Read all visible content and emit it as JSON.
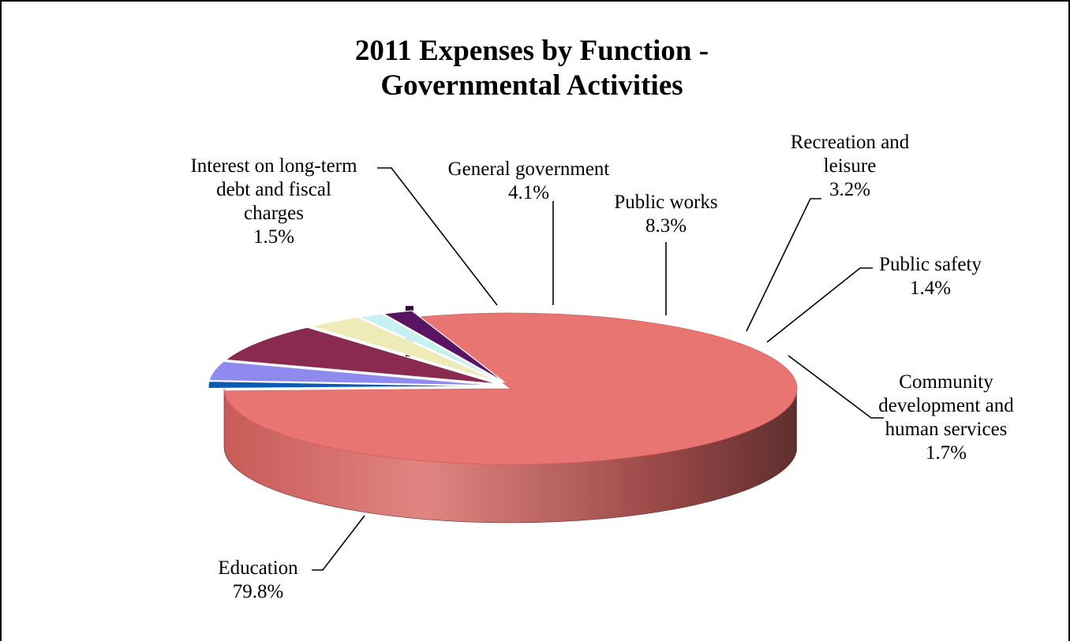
{
  "chart_data": {
    "type": "pie",
    "title": [
      "2011 Expenses by Function -",
      "Governmental Activities"
    ],
    "three_d": true,
    "legend": "none",
    "slices": [
      {
        "key": "education",
        "name": "Education",
        "value": 79.8,
        "label": "79.8%",
        "color": "#E87572",
        "side_color": "#C15B57",
        "exploded": false
      },
      {
        "key": "interest",
        "name": "Interest on long-term debt and fiscal charges",
        "value": 1.5,
        "label": "1.5%",
        "color": "#0B5BB5",
        "side_color": "#073E7E",
        "exploded": true
      },
      {
        "key": "general_government",
        "name": "General government",
        "value": 4.1,
        "label": "4.1%",
        "color": "#8F8BEE",
        "side_color": "#5C58B5",
        "exploded": true
      },
      {
        "key": "public_works",
        "name": "Public works",
        "value": 8.3,
        "label": "8.3%",
        "color": "#8B2A50",
        "side_color": "#5E1A36",
        "exploded": true
      },
      {
        "key": "recreation",
        "name": "Recreation and leisure",
        "value": 3.2,
        "label": "3.2%",
        "color": "#EEEBB9",
        "side_color": "#B8B582",
        "exploded": true
      },
      {
        "key": "public_safety",
        "name": "Public safety",
        "value": 1.4,
        "label": "1.4%",
        "color": "#C6F0F2",
        "side_color": "#8CC0C3",
        "exploded": true
      },
      {
        "key": "community",
        "name": "Community development and human services",
        "value": 1.7,
        "label": "1.7%",
        "color": "#5A1464",
        "side_color": "#3A0B41",
        "exploded": true
      }
    ],
    "labels": {
      "interest": [
        "Interest on long-term",
        "debt and fiscal",
        "charges",
        "1.5%"
      ],
      "general_government": [
        "General government",
        "4.1%"
      ],
      "public_works": [
        "Public works",
        "8.3%"
      ],
      "recreation": [
        "Recreation and",
        "leisure",
        "3.2%"
      ],
      "public_safety": [
        "Public safety",
        "1.4%"
      ],
      "community": [
        "Community",
        "development and",
        "human services",
        "1.7%"
      ],
      "education": [
        "Education",
        "79.8%"
      ]
    }
  }
}
